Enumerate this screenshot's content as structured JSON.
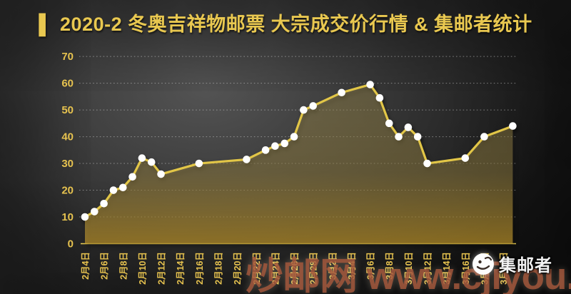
{
  "title": {
    "marker": "▌",
    "text": "2020-2 冬奥吉祥物邮票 大宗成交价行情 & 集邮者统计"
  },
  "colors": {
    "gold": "#e9c850",
    "axis_label": "#e6c24f",
    "line": "#e2c647",
    "dot": "#ffffff",
    "grid": "rgba(218,218,218,0.5)",
    "axis_line": "#ecd052",
    "area_top": "rgba(206,182,98,0.30)",
    "area_mid": "rgba(176,152,78,0.42)",
    "area_bottom": "rgba(210,164,46,0.62)",
    "watermark": "rgba(166,88,60,0.82)",
    "background": "#262626"
  },
  "watermarks": {
    "site_name": "炒邮网",
    "site_url": "www.cjiyou.net",
    "brand": "集邮者"
  },
  "chart_data": {
    "type": "area",
    "title": "2020-2 冬奥吉祥物邮票 大宗成交价行情 & 集邮者统计",
    "xlabel": "",
    "ylabel": "",
    "ylim": [
      0,
      70
    ],
    "y_ticks": [
      0,
      10,
      20,
      30,
      40,
      50,
      60,
      70
    ],
    "grid": "dotted-horizontal",
    "legend": "none",
    "x_tick_labels": [
      "2月4日",
      "2月6日",
      "2月8日",
      "2月10日",
      "2月12日",
      "2月14日",
      "2月16日",
      "2月18日",
      "2月20日",
      "2月22日",
      "2月24日",
      "2月26日",
      "2月28日",
      "3月2日",
      "3月4日",
      "3月6日",
      "3月8日",
      "3月10日",
      "3月12日",
      "3月14日",
      "3月16日",
      "3月18日",
      "3月20日"
    ],
    "series": [
      {
        "points": [
          {
            "date": "2月4日",
            "value": 10
          },
          {
            "date": "2月5日",
            "value": 12
          },
          {
            "date": "2月6日",
            "value": 15
          },
          {
            "date": "2月7日",
            "value": 20
          },
          {
            "date": "2月8日",
            "value": 21
          },
          {
            "date": "2月9日",
            "value": 25
          },
          {
            "date": "2月10日",
            "value": 32
          },
          {
            "date": "2月11日",
            "value": 30.5
          },
          {
            "date": "2月12日",
            "value": 26
          },
          {
            "date": "2月16日",
            "value": 30
          },
          {
            "date": "2月21日",
            "value": 31.5
          },
          {
            "date": "2月23日",
            "value": 35
          },
          {
            "date": "2月24日",
            "value": 36.5
          },
          {
            "date": "2月25日",
            "value": 37.5
          },
          {
            "date": "2月26日",
            "value": 40
          },
          {
            "date": "2月27日",
            "value": 50
          },
          {
            "date": "2月28日",
            "value": 51.5
          },
          {
            "date": "3月3日",
            "value": 56.5
          },
          {
            "date": "3月6日",
            "value": 59.5
          },
          {
            "date": "3月7日",
            "value": 54.5
          },
          {
            "date": "3月8日",
            "value": 45
          },
          {
            "date": "3月9日",
            "value": 40
          },
          {
            "date": "3月10日",
            "value": 43.5
          },
          {
            "date": "3月11日",
            "value": 40
          },
          {
            "date": "3月12日",
            "value": 30
          },
          {
            "date": "3月16日",
            "value": 32
          },
          {
            "date": "3月18日",
            "value": 40
          },
          {
            "date": "3月21日",
            "value": 44
          }
        ]
      }
    ]
  }
}
